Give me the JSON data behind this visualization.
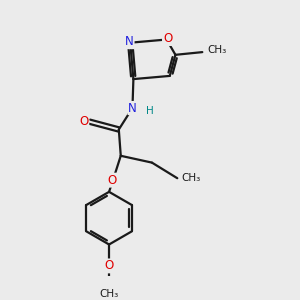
{
  "background_color": "#ebebeb",
  "bond_color": "#1a1a1a",
  "atom_colors": {
    "O": "#e00000",
    "N": "#2020dd",
    "C": "#1a1a1a",
    "H": "#008888"
  },
  "figsize": [
    3.0,
    3.0
  ],
  "dpi": 100,
  "lw": 1.6,
  "fs": 8.5,
  "fs_small": 7.5,
  "xlim": [
    0.3,
    2.7
  ],
  "ylim": [
    0.1,
    2.9
  ]
}
